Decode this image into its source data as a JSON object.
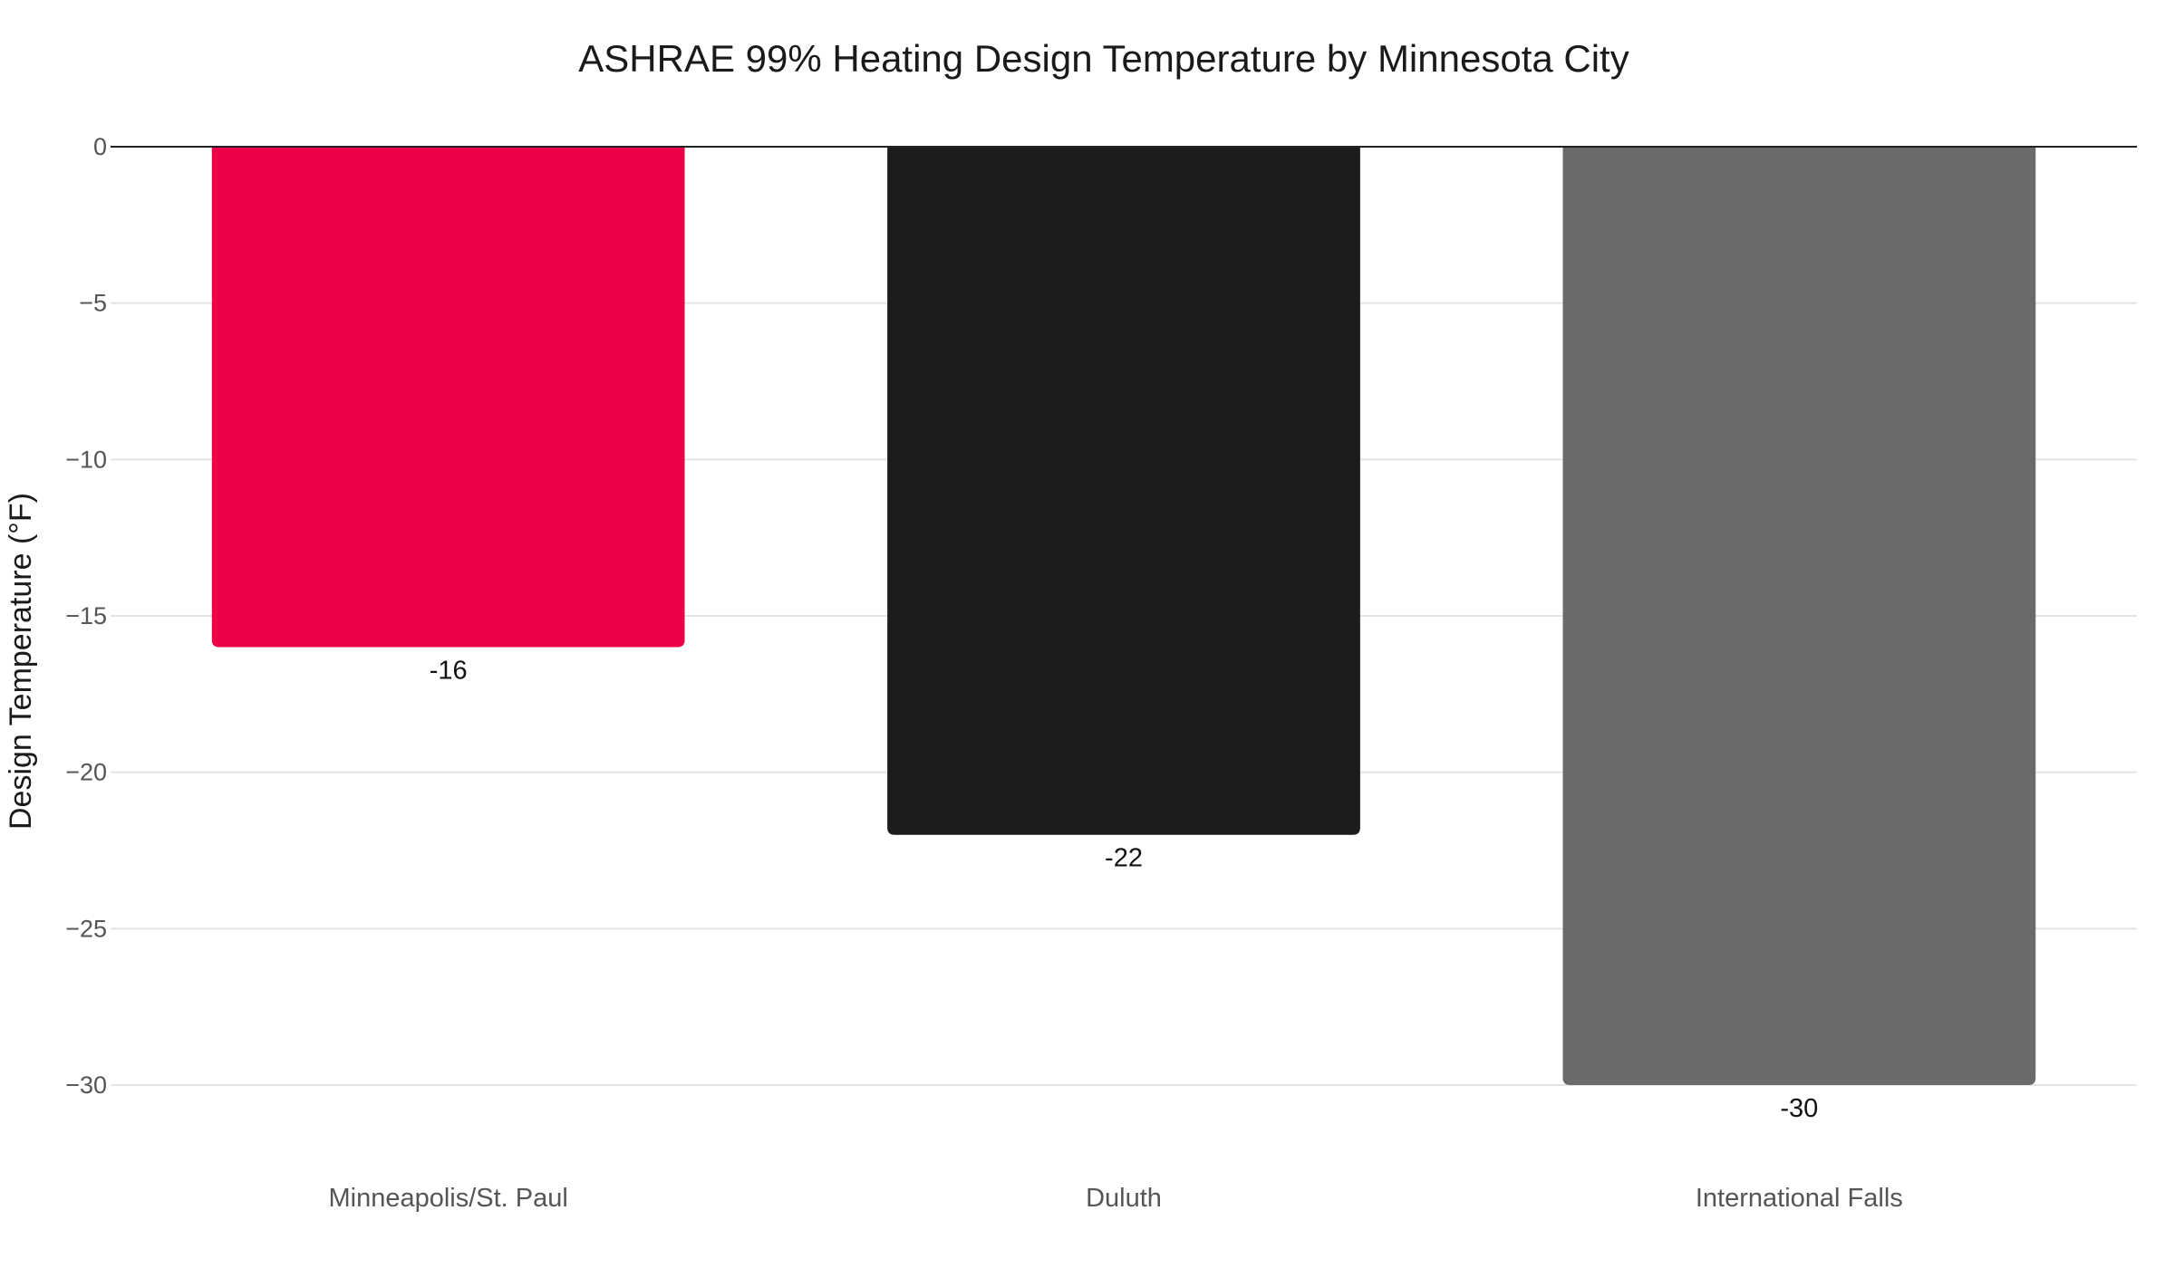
{
  "chart_data": {
    "type": "bar",
    "title": "ASHRAE 99% Heating Design Temperature by Minnesota City",
    "xlabel": "",
    "ylabel": "Design Temperature (°F)",
    "categories": [
      "Minneapolis/St. Paul",
      "Duluth",
      "International Falls"
    ],
    "values": [
      -16,
      -22,
      -30
    ],
    "data_labels": [
      "-16",
      "-22",
      "-30"
    ],
    "bar_colors": [
      "#ec0046",
      "#1c1c1c",
      "#6a6a6a"
    ],
    "ylim": [
      -30,
      0
    ],
    "yticks": [
      0,
      -5,
      -10,
      -15,
      -20,
      -25,
      -30
    ],
    "ytick_labels": [
      "0",
      "−5",
      "−10",
      "−15",
      "−20",
      "−25",
      "−30"
    ],
    "grid": true,
    "legend": "none"
  }
}
